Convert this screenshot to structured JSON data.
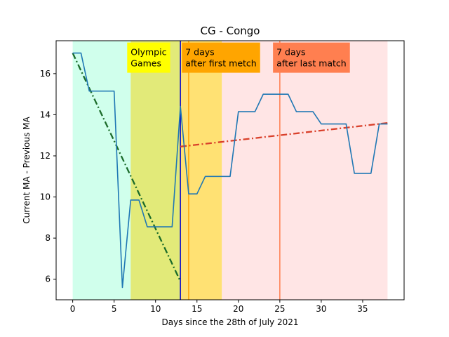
{
  "chart_data": {
    "type": "line",
    "title": "CG - Congo",
    "xlabel": "Days since the 28th of July 2021",
    "ylabel": "Current MA - Previous MA",
    "xlim": [
      -2,
      40
    ],
    "ylim": [
      5.0,
      17.6
    ],
    "xticks": [
      0,
      5,
      10,
      15,
      20,
      25,
      30,
      35
    ],
    "yticks": [
      6,
      8,
      10,
      12,
      14,
      16
    ],
    "grid": false,
    "series": [
      {
        "x": [
          0,
          1,
          2,
          3,
          4,
          5,
          6,
          7,
          8,
          9,
          10,
          11,
          12,
          13,
          14,
          15,
          16,
          17,
          18,
          19,
          20,
          21,
          22,
          23,
          24,
          25,
          26,
          27,
          28,
          29,
          30,
          31,
          32,
          33,
          34,
          35,
          36,
          37,
          38
        ],
        "values": [
          17.0,
          17.0,
          15.15,
          15.15,
          15.15,
          15.15,
          5.6,
          9.85,
          9.85,
          8.55,
          8.55,
          8.55,
          8.55,
          14.4,
          10.15,
          10.15,
          11.0,
          11.0,
          11.0,
          11.0,
          14.15,
          14.15,
          14.15,
          15.0,
          15.0,
          15.0,
          15.0,
          14.15,
          14.15,
          14.15,
          13.55,
          13.55,
          13.55,
          13.55,
          11.15,
          11.15,
          11.15,
          13.55,
          13.55
        ],
        "color": "#1f77b4"
      }
    ],
    "trend_lines": [
      {
        "x": [
          0,
          13
        ],
        "values": [
          17.0,
          5.9
        ],
        "color": "#1b6b2a",
        "style": "dash-dot"
      },
      {
        "x": [
          13,
          38
        ],
        "values": [
          12.45,
          13.6
        ],
        "color": "#d9402b",
        "style": "dash-dot"
      }
    ],
    "spans": [
      {
        "from": 0,
        "to": 7,
        "color": "#aaffdd",
        "opacity": 0.55
      },
      {
        "from": 7,
        "to": 13,
        "color": "#dfe86a",
        "opacity": 0.9
      },
      {
        "from": 13,
        "to": 18,
        "color": "#ffdf6b",
        "opacity": 0.95
      },
      {
        "from": 18,
        "to": 38,
        "color": "#ffcccc",
        "opacity": 0.5
      }
    ],
    "vlines": [
      {
        "x": 13,
        "color": "#0000cc"
      },
      {
        "x": 14,
        "color": "#ffa500"
      },
      {
        "x": 25,
        "color": "#ff7f50"
      }
    ],
    "annotations": [
      {
        "text": [
          "Olympic",
          "Games"
        ],
        "x": 7.0,
        "y": 16.35,
        "box_color": "#ffff00"
      },
      {
        "text": [
          "7 days",
          "after first metch"
        ],
        "x": 13.6,
        "y": 16.35,
        "box_color": "#ffa500"
      },
      {
        "text": [
          "7 days",
          "after last match"
        ],
        "x": 24.6,
        "y": 16.35,
        "box_color": "#ff7f50"
      }
    ]
  }
}
